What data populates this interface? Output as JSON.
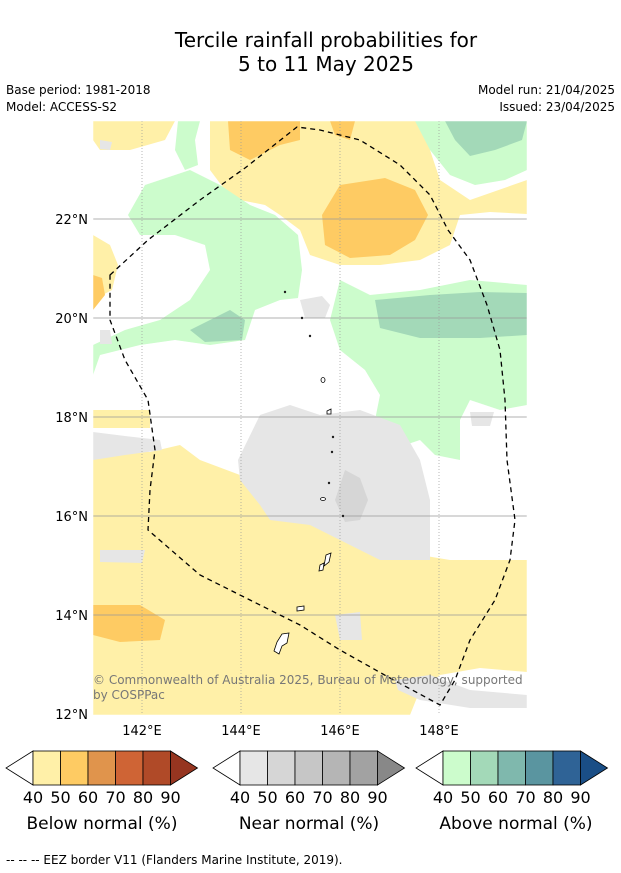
{
  "title_line1": "Tercile rainfall probabilities for",
  "title_line2": "5 to 11 May 2025",
  "base_period": "Base period: 1981-2018",
  "model": "Model: ACCESS-S2",
  "model_run": "Model run: 21/04/2025",
  "issued": "Issued: 23/04/2025",
  "copyright_line1": "© Commonwealth of Australia 2025, Bureau of Meteorology, supported",
  "copyright_line2": "by COSPPac",
  "lat_labels": [
    "22°N",
    "20°N",
    "18°N",
    "16°N",
    "14°N",
    "12°N"
  ],
  "lon_labels": [
    "142°E",
    "144°E",
    "146°E",
    "148°E"
  ],
  "legends": [
    {
      "title": "Below normal (%)",
      "colors": [
        "#fff0a8",
        "#fecb63",
        "#e0944c",
        "#cf6435",
        "#b04a28",
        "#963520"
      ]
    },
    {
      "title": "Near normal (%)",
      "colors": [
        "#e6e6e6",
        "#d6d6d6",
        "#c6c6c6",
        "#b5b5b5",
        "#a2a2a2",
        "#888888"
      ]
    },
    {
      "title": "Above normal (%)",
      "colors": [
        "#ccfccc",
        "#a3d9b8",
        "#7fb8ad",
        "#5a95a0",
        "#2f6396",
        "#1a4e86"
      ]
    }
  ],
  "legend_ticks": [
    "40",
    "50",
    "60",
    "70",
    "80",
    "90"
  ],
  "footnote": "--  --  -- EEZ border V11 (Flanders Marine Institute, 2019)."
}
